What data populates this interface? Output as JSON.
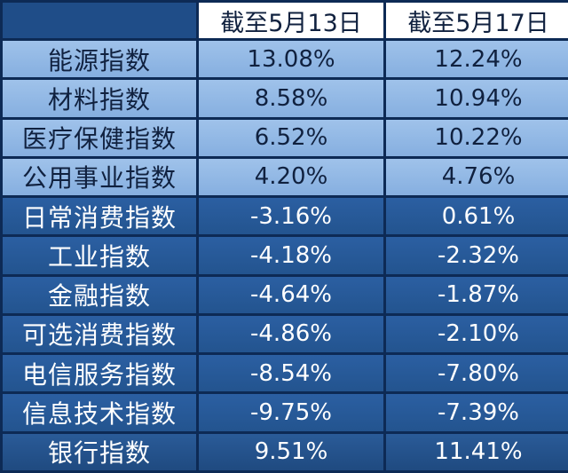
{
  "table": {
    "headers": [
      "",
      "截至5月13日",
      "截至5月17日"
    ],
    "rows": [
      {
        "name": "能源指数",
        "may13": "13.08%",
        "may17": "12.24%",
        "style": "light"
      },
      {
        "name": "材料指数",
        "may13": "8.58%",
        "may17": "10.94%",
        "style": "light"
      },
      {
        "name": "医疗保健指数",
        "may13": "6.52%",
        "may17": "10.22%",
        "style": "light"
      },
      {
        "name": "公用事业指数",
        "may13": "4.20%",
        "may17": "4.76%",
        "style": "light"
      },
      {
        "name": "日常消费指数",
        "may13": "-3.16%",
        "may17": "0.61%",
        "style": "dark"
      },
      {
        "name": "工业指数",
        "may13": "-4.18%",
        "may17": "-2.32%",
        "style": "dark"
      },
      {
        "name": "金融指数",
        "may13": "-4.64%",
        "may17": "-1.87%",
        "style": "dark"
      },
      {
        "name": "可选消费指数",
        "may13": "-4.86%",
        "may17": "-2.10%",
        "style": "dark"
      },
      {
        "name": "电信服务指数",
        "may13": "-8.54%",
        "may17": "-7.80%",
        "style": "dark"
      },
      {
        "name": "信息技术指数",
        "may13": "-9.75%",
        "may17": "-7.39%",
        "style": "dark"
      },
      {
        "name": "银行指数",
        "may13": "9.51%",
        "may17": "11.41%",
        "style": "last"
      }
    ]
  },
  "colors": {
    "light_row": "#9fc2ea",
    "dark_row": "#2b5fa2",
    "header": "#ffffff",
    "background": "#0d2a55"
  }
}
